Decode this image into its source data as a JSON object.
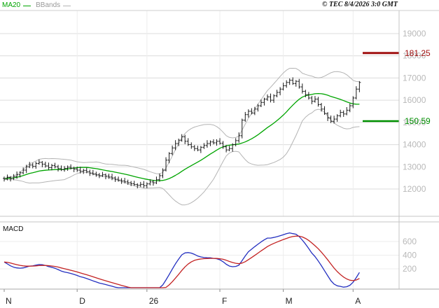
{
  "header": {
    "ma_label": "MA20",
    "bbands_label": "BBands",
    "copyright": "© TEC 8/4/2026 3:0 GMT"
  },
  "colors": {
    "ma": "#00a500",
    "bbands": "#b4b4b4",
    "candle": "#1a1a1a",
    "resistance": "#a01010",
    "support": "#009000",
    "macd_line": "#2430c0",
    "macd_signal": "#c32222",
    "grid": "#dcdcdc",
    "axis_text": "#b9b9b9",
    "month_text": "#222222"
  },
  "chart_data": {
    "type": "candlestick+macd",
    "title": "",
    "price_panel": {
      "y_ticks": [
        19000,
        18000,
        17000,
        16000,
        15000,
        14000,
        13000,
        12000
      ],
      "markers": [
        {
          "label": "181.25",
          "value": 18125,
          "role": "resistance"
        },
        {
          "label": "150.59",
          "value": 15059,
          "role": "support"
        }
      ],
      "indicators": {
        "ma_period": 20,
        "bollinger_period": 20,
        "bollinger_mult": 2
      }
    },
    "macd_panel": {
      "label": "MACD",
      "y_ticks": [
        600,
        400,
        200
      ],
      "params": [
        12,
        26,
        9
      ]
    },
    "x_labels": [
      {
        "label": "N",
        "bar": 0
      },
      {
        "label": "D",
        "bar": 23
      },
      {
        "label": "26",
        "bar": 45
      },
      {
        "label": "F",
        "bar": 68
      },
      {
        "label": "M",
        "bar": 88
      },
      {
        "label": "A",
        "bar": 110
      }
    ],
    "ohlc": [
      [
        12480,
        12560,
        12340,
        12450
      ],
      [
        12450,
        12650,
        12390,
        12520
      ],
      [
        12520,
        12580,
        12340,
        12480
      ],
      [
        12480,
        12670,
        12400,
        12560
      ],
      [
        12560,
        12790,
        12460,
        12640
      ],
      [
        12640,
        12800,
        12520,
        12730
      ],
      [
        12730,
        12970,
        12660,
        12850
      ],
      [
        12850,
        13090,
        12720,
        13000
      ],
      [
        13000,
        13220,
        12940,
        13080
      ],
      [
        13080,
        13180,
        12930,
        13020
      ],
      [
        13020,
        13230,
        12910,
        13150
      ],
      [
        13150,
        13330,
        13090,
        13200
      ],
      [
        13200,
        13260,
        12980,
        13120
      ],
      [
        13120,
        13230,
        12960,
        13040
      ],
      [
        13040,
        13190,
        12860,
        12960
      ],
      [
        12960,
        13130,
        12840,
        13060
      ],
      [
        13060,
        13180,
        12930,
        13000
      ],
      [
        13000,
        13090,
        12790,
        12920
      ],
      [
        12920,
        13060,
        12810,
        12870
      ],
      [
        12870,
        13030,
        12780,
        12930
      ],
      [
        12930,
        13060,
        12820,
        12980
      ],
      [
        12980,
        13110,
        12880,
        12940
      ],
      [
        12940,
        13000,
        12760,
        12900
      ],
      [
        12900,
        13010,
        12770,
        12850
      ],
      [
        12850,
        13000,
        12700,
        12800
      ],
      [
        12800,
        12910,
        12680,
        12840
      ],
      [
        12840,
        12960,
        12710,
        12780
      ],
      [
        12780,
        12870,
        12590,
        12720
      ],
      [
        12720,
        12860,
        12620,
        12680
      ],
      [
        12680,
        12780,
        12550,
        12640
      ],
      [
        12640,
        12720,
        12490,
        12600
      ],
      [
        12600,
        12770,
        12540,
        12640
      ],
      [
        12640,
        12700,
        12440,
        12580
      ],
      [
        12580,
        12690,
        12460,
        12540
      ],
      [
        12540,
        12690,
        12400,
        12500
      ],
      [
        12500,
        12570,
        12320,
        12440
      ],
      [
        12440,
        12560,
        12330,
        12400
      ],
      [
        12400,
        12490,
        12230,
        12360
      ],
      [
        12360,
        12500,
        12260,
        12320
      ],
      [
        12320,
        12420,
        12190,
        12280
      ],
      [
        12280,
        12360,
        12130,
        12240
      ],
      [
        12240,
        12370,
        12140,
        12200
      ],
      [
        12200,
        12260,
        12030,
        12170
      ],
      [
        12170,
        12320,
        12090,
        12210
      ],
      [
        12210,
        12360,
        12050,
        12150
      ],
      [
        12150,
        12300,
        12030,
        12230
      ],
      [
        12230,
        12440,
        12160,
        12320
      ],
      [
        12320,
        12410,
        12150,
        12280
      ],
      [
        12280,
        12560,
        12220,
        12420
      ],
      [
        12420,
        12700,
        12330,
        12600
      ],
      [
        12600,
        12930,
        12490,
        12850
      ],
      [
        12850,
        13430,
        12790,
        13300
      ],
      [
        13300,
        13660,
        13160,
        13600
      ],
      [
        13600,
        13960,
        13520,
        13850
      ],
      [
        13850,
        14200,
        13750,
        14050
      ],
      [
        14050,
        14270,
        13930,
        14200
      ],
      [
        14200,
        14470,
        14130,
        14350
      ],
      [
        14350,
        14440,
        14020,
        14150
      ],
      [
        14150,
        14290,
        13940,
        14000
      ],
      [
        14000,
        14100,
        13810,
        13900
      ],
      [
        13900,
        13980,
        13710,
        13820
      ],
      [
        13820,
        13950,
        13700,
        13760
      ],
      [
        13760,
        13940,
        13620,
        13880
      ],
      [
        13880,
        14070,
        13800,
        13960
      ],
      [
        13960,
        14200,
        13860,
        14050
      ],
      [
        14050,
        14190,
        13930,
        14120
      ],
      [
        14120,
        14240,
        14010,
        14080
      ],
      [
        14080,
        14240,
        13950,
        14150
      ],
      [
        14150,
        14290,
        14000,
        14060
      ],
      [
        14060,
        14160,
        13810,
        13900
      ],
      [
        13900,
        13980,
        13650,
        13760
      ],
      [
        13760,
        13950,
        13700,
        13820
      ],
      [
        13820,
        14060,
        13680,
        14000
      ],
      [
        14000,
        14290,
        13920,
        14180
      ],
      [
        14180,
        14550,
        14080,
        14400
      ],
      [
        14400,
        15170,
        14280,
        15100
      ],
      [
        15100,
        15470,
        15030,
        15350
      ],
      [
        15350,
        15590,
        15220,
        15500
      ],
      [
        15500,
        15640,
        15360,
        15420
      ],
      [
        15420,
        15700,
        15330,
        15600
      ],
      [
        15600,
        15830,
        15490,
        15750
      ],
      [
        15750,
        16030,
        15690,
        15900
      ],
      [
        15900,
        16110,
        15760,
        16050
      ],
      [
        16050,
        16260,
        15970,
        16150
      ],
      [
        16150,
        16300,
        15900,
        16000
      ],
      [
        16000,
        16270,
        15880,
        16200
      ],
      [
        16200,
        16470,
        16130,
        16350
      ],
      [
        16350,
        16590,
        16220,
        16500
      ],
      [
        16500,
        16790,
        16440,
        16650
      ],
      [
        16650,
        16900,
        16560,
        16800
      ],
      [
        16800,
        16980,
        16690,
        16900
      ],
      [
        16900,
        17030,
        16690,
        16750
      ],
      [
        16750,
        16910,
        16610,
        16850
      ],
      [
        16850,
        16960,
        16520,
        16600
      ],
      [
        16600,
        16750,
        16300,
        16400
      ],
      [
        16400,
        16470,
        16130,
        16250
      ],
      [
        16250,
        16370,
        16030,
        16100
      ],
      [
        16100,
        16190,
        15820,
        15950
      ],
      [
        15950,
        16190,
        15890,
        16050
      ],
      [
        16050,
        16150,
        15710,
        15800
      ],
      [
        15800,
        15880,
        15490,
        15600
      ],
      [
        15600,
        15730,
        15340,
        15400
      ],
      [
        15400,
        15460,
        15060,
        15200
      ],
      [
        15200,
        15310,
        14970,
        15050
      ],
      [
        15050,
        15300,
        14950,
        15150
      ],
      [
        15150,
        15370,
        15030,
        15300
      ],
      [
        15300,
        15570,
        15230,
        15450
      ],
      [
        15450,
        15540,
        15250,
        15380
      ],
      [
        15380,
        15690,
        15320,
        15550
      ],
      [
        15550,
        15850,
        15460,
        15750
      ],
      [
        15750,
        16180,
        15640,
        16100
      ],
      [
        16100,
        16630,
        16040,
        16500
      ],
      [
        16500,
        16860,
        16360,
        16800
      ]
    ]
  }
}
